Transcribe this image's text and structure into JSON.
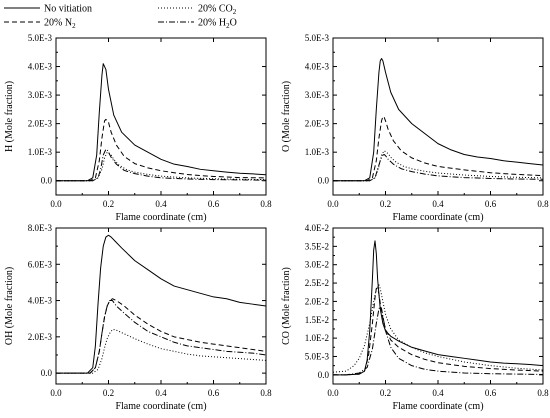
{
  "legend": {
    "entries": [
      {
        "label": "No vitiation",
        "main": "No vitiation",
        "sub": "",
        "tail": "",
        "dash": "solid"
      },
      {
        "label": "20% CO2",
        "main": "20% CO",
        "sub": "2",
        "tail": "",
        "dash": "dot"
      },
      {
        "label": "20% N2",
        "main": "20% N",
        "sub": "2",
        "tail": "",
        "dash": "dash"
      },
      {
        "label": "20% H2O",
        "main": "20% H",
        "sub": "2",
        "tail": "O",
        "dash": "dashdot"
      }
    ]
  },
  "chart_data": [
    {
      "type": "line",
      "xlabel": "Flame coordinate (cm)",
      "ylabel": "H (Mole fraction)",
      "xlim": [
        0.0,
        0.8
      ],
      "ylim": [
        -0.0005,
        0.005
      ],
      "xticks": [
        0.0,
        0.2,
        0.4,
        0.6,
        0.8
      ],
      "xtick_labels": [
        "0.0",
        "0.2",
        "0.4",
        "0.6",
        "0.8"
      ],
      "yticks": [
        0.0,
        0.001,
        0.002,
        0.003,
        0.004,
        0.005
      ],
      "ytick_labels": [
        "0.0",
        "1.0E-3",
        "2.0E-3",
        "3.0E-3",
        "4.0E-3",
        "5.0E-3"
      ],
      "series": [
        {
          "name": "No vitiation",
          "dash": "solid",
          "x": [
            0,
            0.12,
            0.14,
            0.155,
            0.165,
            0.175,
            0.18,
            0.19,
            0.2,
            0.22,
            0.25,
            0.3,
            0.35,
            0.4,
            0.45,
            0.5,
            0.55,
            0.6,
            0.65,
            0.7,
            0.75,
            0.8
          ],
          "y": [
            0,
            0,
            0.0001,
            0.0009,
            0.0024,
            0.0037,
            0.0041,
            0.0039,
            0.0032,
            0.0023,
            0.0017,
            0.00125,
            0.001,
            0.00075,
            0.00058,
            0.0005,
            0.0004,
            0.00035,
            0.0003,
            0.00026,
            0.00024,
            0.00021
          ]
        },
        {
          "name": "20% N2",
          "dash": "dash",
          "x": [
            0,
            0.13,
            0.15,
            0.165,
            0.175,
            0.185,
            0.19,
            0.2,
            0.21,
            0.23,
            0.26,
            0.3,
            0.35,
            0.4,
            0.45,
            0.5,
            0.55,
            0.6,
            0.7,
            0.8
          ],
          "y": [
            0,
            0,
            0.0001,
            0.0007,
            0.0015,
            0.0021,
            0.00215,
            0.00205,
            0.0017,
            0.00125,
            0.00085,
            0.0006,
            0.00045,
            0.00035,
            0.00028,
            0.00022,
            0.00018,
            0.00015,
            0.00011,
            0.0001
          ]
        },
        {
          "name": "20% CO2",
          "dash": "dot",
          "x": [
            0,
            0.14,
            0.16,
            0.175,
            0.185,
            0.195,
            0.2,
            0.21,
            0.22,
            0.24,
            0.27,
            0.3,
            0.35,
            0.4,
            0.5,
            0.6,
            0.7,
            0.8
          ],
          "y": [
            0,
            0,
            0.0001,
            0.0004,
            0.0008,
            0.001,
            0.00098,
            0.0009,
            0.00075,
            0.00055,
            0.00038,
            0.0003,
            0.00022,
            0.00016,
            0.0001,
            7e-05,
            5e-05,
            4e-05
          ]
        },
        {
          "name": "20% H2O",
          "dash": "dashdot",
          "x": [
            0,
            0.14,
            0.16,
            0.17,
            0.18,
            0.19,
            0.195,
            0.2,
            0.21,
            0.23,
            0.26,
            0.3,
            0.35,
            0.4,
            0.5,
            0.6,
            0.7,
            0.8
          ],
          "y": [
            0,
            0,
            0.0001,
            0.0004,
            0.0009,
            0.0011,
            0.00108,
            0.001,
            0.00082,
            0.00058,
            0.00036,
            0.00025,
            0.00016,
            0.0001,
            6e-05,
            4e-05,
            3e-05,
            2e-05
          ]
        }
      ]
    },
    {
      "type": "line",
      "xlabel": "Flame coordinate (cm)",
      "ylabel": "O (Mole fraction)",
      "xlim": [
        0.0,
        0.8
      ],
      "ylim": [
        -0.0005,
        0.005
      ],
      "xticks": [
        0.0,
        0.2,
        0.4,
        0.6,
        0.8
      ],
      "xtick_labels": [
        "0.0",
        "0.2",
        "0.4",
        "0.6",
        "0.8"
      ],
      "yticks": [
        0.0,
        0.001,
        0.002,
        0.003,
        0.004,
        0.005
      ],
      "ytick_labels": [
        "0.0",
        "1.0E-3",
        "2.0E-3",
        "3.0E-3",
        "4.0E-3",
        "5.0E-3"
      ],
      "series": [
        {
          "name": "No vitiation",
          "dash": "solid",
          "x": [
            0,
            0.12,
            0.14,
            0.155,
            0.165,
            0.175,
            0.18,
            0.185,
            0.19,
            0.2,
            0.22,
            0.25,
            0.3,
            0.35,
            0.4,
            0.45,
            0.5,
            0.55,
            0.6,
            0.65,
            0.7,
            0.75,
            0.8
          ],
          "y": [
            0,
            0,
            0.0001,
            0.001,
            0.0025,
            0.0038,
            0.0042,
            0.00428,
            0.0042,
            0.0038,
            0.0031,
            0.0025,
            0.002,
            0.00165,
            0.0013,
            0.00108,
            0.00092,
            0.00083,
            0.00078,
            0.0007,
            0.00065,
            0.0006,
            0.00055
          ]
        },
        {
          "name": "20% N2",
          "dash": "dash",
          "x": [
            0,
            0.13,
            0.15,
            0.165,
            0.175,
            0.185,
            0.19,
            0.195,
            0.2,
            0.21,
            0.23,
            0.26,
            0.3,
            0.35,
            0.4,
            0.5,
            0.6,
            0.7,
            0.8
          ],
          "y": [
            0,
            0,
            0.0001,
            0.0007,
            0.0015,
            0.0021,
            0.00225,
            0.00222,
            0.0021,
            0.0018,
            0.0014,
            0.00105,
            0.0008,
            0.00062,
            0.0005,
            0.00038,
            0.00028,
            0.00022,
            0.00018
          ]
        },
        {
          "name": "20% CO2",
          "dash": "dot",
          "x": [
            0,
            0.14,
            0.16,
            0.175,
            0.185,
            0.195,
            0.2,
            0.21,
            0.22,
            0.24,
            0.27,
            0.3,
            0.35,
            0.4,
            0.5,
            0.6,
            0.7,
            0.8
          ],
          "y": [
            0,
            0,
            0.0001,
            0.0005,
            0.0009,
            0.00105,
            0.00102,
            0.00095,
            0.00082,
            0.00065,
            0.0005,
            0.00042,
            0.00033,
            0.00027,
            0.0002,
            0.00015,
            0.00012,
            0.0001
          ]
        },
        {
          "name": "20% H2O",
          "dash": "dashdot",
          "x": [
            0,
            0.14,
            0.16,
            0.17,
            0.18,
            0.19,
            0.195,
            0.2,
            0.21,
            0.23,
            0.26,
            0.3,
            0.35,
            0.4,
            0.5,
            0.6,
            0.7,
            0.8
          ],
          "y": [
            0,
            0,
            0.0001,
            0.0004,
            0.0007,
            0.0009,
            0.00092,
            0.00088,
            0.00075,
            0.00058,
            0.00042,
            0.00032,
            0.00023,
            0.00017,
            0.00011,
            8e-05,
            6e-05,
            5e-05
          ]
        }
      ]
    },
    {
      "type": "line",
      "xlabel": "Flame coordinate (cm)",
      "ylabel": "OH (Mole fraction)",
      "xlim": [
        0.0,
        0.8
      ],
      "ylim": [
        -0.0006,
        0.008
      ],
      "xticks": [
        0.0,
        0.2,
        0.4,
        0.6,
        0.8
      ],
      "xtick_labels": [
        "0.0",
        "0.2",
        "0.4",
        "0.6",
        "0.8"
      ],
      "yticks": [
        0.0,
        0.002,
        0.004,
        0.006,
        0.008
      ],
      "ytick_labels": [
        "0.0",
        "2.0E-3",
        "4.0E-3",
        "6.0E-3",
        "8.0E-3"
      ],
      "series": [
        {
          "name": "No vitiation",
          "dash": "solid",
          "x": [
            0,
            0.12,
            0.14,
            0.15,
            0.16,
            0.17,
            0.18,
            0.19,
            0.2,
            0.21,
            0.23,
            0.25,
            0.3,
            0.35,
            0.4,
            0.45,
            0.5,
            0.55,
            0.6,
            0.65,
            0.7,
            0.75,
            0.8
          ],
          "y": [
            0,
            0,
            0.0003,
            0.0015,
            0.0038,
            0.0058,
            0.007,
            0.0075,
            0.0076,
            0.0075,
            0.0072,
            0.0069,
            0.0062,
            0.0057,
            0.0052,
            0.0048,
            0.0046,
            0.0044,
            0.0042,
            0.0041,
            0.0039,
            0.0038,
            0.0037
          ]
        },
        {
          "name": "20% N2",
          "dash": "dash",
          "x": [
            0,
            0.13,
            0.15,
            0.165,
            0.175,
            0.185,
            0.195,
            0.205,
            0.215,
            0.23,
            0.26,
            0.3,
            0.35,
            0.4,
            0.45,
            0.5,
            0.55,
            0.6,
            0.65,
            0.7,
            0.75,
            0.8
          ],
          "y": [
            0,
            0,
            0.0003,
            0.0012,
            0.0022,
            0.0031,
            0.0037,
            0.004,
            0.0041,
            0.004,
            0.0037,
            0.0032,
            0.0027,
            0.0023,
            0.002,
            0.00185,
            0.0017,
            0.0016,
            0.0015,
            0.0014,
            0.0013,
            0.0012
          ]
        },
        {
          "name": "20% H2O",
          "dash": "dashdot",
          "x": [
            0,
            0.13,
            0.15,
            0.165,
            0.175,
            0.185,
            0.195,
            0.205,
            0.215,
            0.23,
            0.26,
            0.3,
            0.35,
            0.4,
            0.45,
            0.5,
            0.55,
            0.6,
            0.65,
            0.7,
            0.75,
            0.8
          ],
          "y": [
            0,
            0,
            0.0003,
            0.0012,
            0.0022,
            0.0031,
            0.0037,
            0.004,
            0.004,
            0.0037,
            0.0033,
            0.0028,
            0.0023,
            0.002,
            0.0017,
            0.0015,
            0.0014,
            0.0013,
            0.0012,
            0.00115,
            0.0011,
            0.001
          ]
        },
        {
          "name": "20% CO2",
          "dash": "dot",
          "x": [
            0,
            0.14,
            0.16,
            0.175,
            0.185,
            0.195,
            0.205,
            0.215,
            0.225,
            0.24,
            0.27,
            0.3,
            0.35,
            0.4,
            0.45,
            0.5,
            0.55,
            0.6,
            0.65,
            0.7,
            0.75,
            0.8
          ],
          "y": [
            0,
            0,
            0.0002,
            0.0008,
            0.0014,
            0.0019,
            0.0022,
            0.0024,
            0.0024,
            0.0023,
            0.0021,
            0.0019,
            0.0016,
            0.00135,
            0.0012,
            0.00105,
            0.00095,
            0.0009,
            0.00085,
            0.0008,
            0.00075,
            0.0007
          ]
        }
      ]
    },
    {
      "type": "line",
      "xlabel": "Flame coordinate (cm)",
      "ylabel": "CO (Mole fraction)",
      "xlim": [
        0.0,
        0.8
      ],
      "ylim": [
        -0.0025,
        0.04
      ],
      "xticks": [
        0.0,
        0.2,
        0.4,
        0.6,
        0.8
      ],
      "xtick_labels": [
        "0.0",
        "0.2",
        "0.4",
        "0.6",
        "0.8"
      ],
      "yticks": [
        0.0,
        0.005,
        0.01,
        0.015,
        0.02,
        0.025,
        0.03,
        0.035,
        0.04
      ],
      "ytick_labels": [
        "0.0",
        "5.0E-3",
        "1.0E-2",
        "1.5E-2",
        "2.0E-2",
        "2.5E-2",
        "3.0E-2",
        "3.5E-2",
        "4.0E-2"
      ],
      "series": [
        {
          "name": "No vitiation",
          "dash": "solid",
          "x": [
            0,
            0.05,
            0.1,
            0.12,
            0.13,
            0.14,
            0.15,
            0.155,
            0.16,
            0.165,
            0.17,
            0.18,
            0.19,
            0.2,
            0.22,
            0.25,
            0.3,
            0.35,
            0.4,
            0.45,
            0.5,
            0.55,
            0.6,
            0.65,
            0.7,
            0.75,
            0.8
          ],
          "y": [
            0,
            0,
            0.0002,
            0.001,
            0.004,
            0.012,
            0.026,
            0.034,
            0.0365,
            0.033,
            0.026,
            0.018,
            0.014,
            0.012,
            0.0105,
            0.0092,
            0.0075,
            0.0065,
            0.0055,
            0.005,
            0.0045,
            0.004,
            0.0035,
            0.0032,
            0.003,
            0.0028,
            0.0025
          ]
        },
        {
          "name": "20% N2",
          "dash": "dash",
          "x": [
            0,
            0.05,
            0.1,
            0.12,
            0.135,
            0.15,
            0.16,
            0.165,
            0.17,
            0.175,
            0.18,
            0.19,
            0.2,
            0.22,
            0.25,
            0.3,
            0.35,
            0.4,
            0.5,
            0.6,
            0.7,
            0.8
          ],
          "y": [
            0,
            0,
            0.0002,
            0.001,
            0.005,
            0.014,
            0.021,
            0.0235,
            0.0235,
            0.022,
            0.0195,
            0.0155,
            0.0125,
            0.0095,
            0.0075,
            0.0055,
            0.0042,
            0.0033,
            0.0023,
            0.0017,
            0.0013,
            0.001
          ]
        },
        {
          "name": "20% CO2",
          "dash": "dot",
          "x": [
            0,
            0.05,
            0.08,
            0.1,
            0.12,
            0.14,
            0.155,
            0.165,
            0.175,
            0.18,
            0.19,
            0.2,
            0.22,
            0.25,
            0.3,
            0.35,
            0.4,
            0.5,
            0.6,
            0.7,
            0.8
          ],
          "y": [
            0.0007,
            0.001,
            0.0025,
            0.0045,
            0.008,
            0.014,
            0.02,
            0.0235,
            0.0245,
            0.0235,
            0.02,
            0.0165,
            0.0125,
            0.0095,
            0.0075,
            0.006,
            0.005,
            0.0035,
            0.0025,
            0.0018,
            0.0013
          ]
        },
        {
          "name": "20% H2O",
          "dash": "dashdot",
          "x": [
            0,
            0.05,
            0.1,
            0.13,
            0.15,
            0.165,
            0.175,
            0.18,
            0.185,
            0.19,
            0.2,
            0.22,
            0.25,
            0.3,
            0.35,
            0.4,
            0.5,
            0.6,
            0.7,
            0.8
          ],
          "y": [
            0,
            0,
            0.0005,
            0.002,
            0.007,
            0.014,
            0.018,
            0.0185,
            0.018,
            0.016,
            0.012,
            0.0075,
            0.0045,
            0.0025,
            0.0015,
            0.001,
            0.0005,
            0.0003,
            0.0002,
            0.0001
          ]
        }
      ]
    }
  ]
}
